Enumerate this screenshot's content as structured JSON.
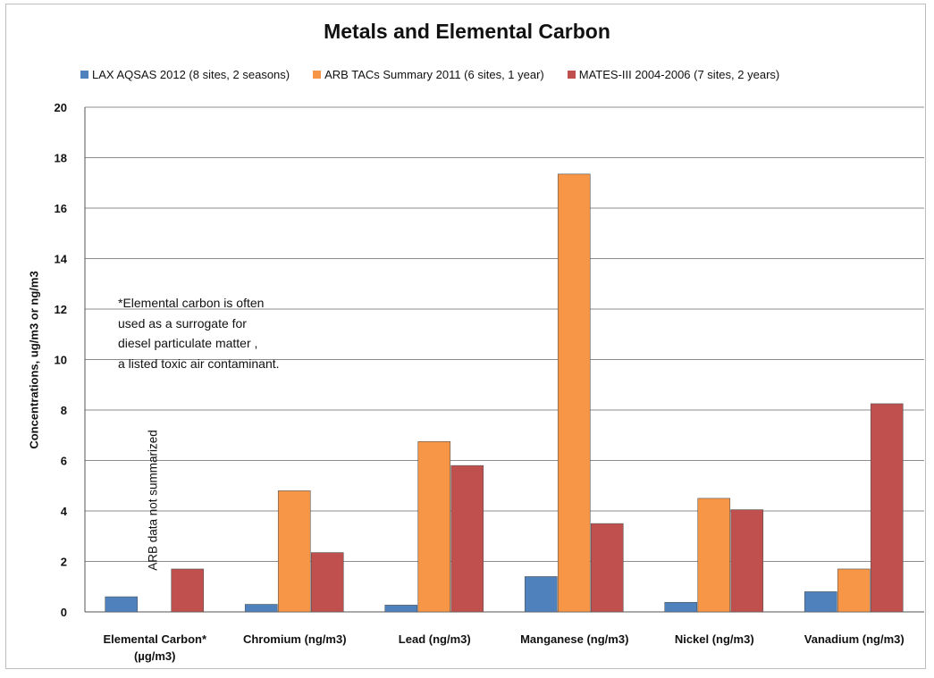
{
  "chart_data": {
    "type": "bar",
    "title": "Metals and Elemental Carbon",
    "ylabel": "Concentrations, ug/m3 or ng/m3",
    "xlabel": "",
    "ylim": [
      0,
      20
    ],
    "yticks": [
      0,
      2,
      4,
      6,
      8,
      10,
      12,
      14,
      16,
      18,
      20
    ],
    "grid": true,
    "legend_position": "top",
    "categories": [
      [
        "Elemental Carbon*",
        "(µg/m3)"
      ],
      [
        "Chromium (ng/m3)"
      ],
      [
        "Lead (ng/m3)"
      ],
      [
        "Manganese (ng/m3)"
      ],
      [
        "Nickel (ng/m3)"
      ],
      [
        "Vanadium (ng/m3)"
      ]
    ],
    "series": [
      {
        "name": "LAX AQSAS 2012 (8 sites, 2 seasons)",
        "color": "#4f81bd",
        "values": [
          0.6,
          0.3,
          0.27,
          1.4,
          0.38,
          0.8
        ]
      },
      {
        "name": "ARB TACs Summary 2011 (6 sites, 1 year)",
        "color": "#f79646",
        "values": [
          null,
          4.8,
          6.75,
          17.35,
          4.5,
          1.7
        ]
      },
      {
        "name": "MATES-III 2004-2006 (7 sites, 2 years)",
        "color": "#c0504d",
        "values": [
          1.7,
          2.35,
          5.8,
          3.5,
          4.05,
          8.25
        ]
      }
    ],
    "annotations": {
      "note": "*Elemental carbon is often\nused as a surrogate for\ndiesel particulate matter ,\na listed toxic air contaminant.",
      "arb_note": "ARB data not summarized"
    }
  }
}
